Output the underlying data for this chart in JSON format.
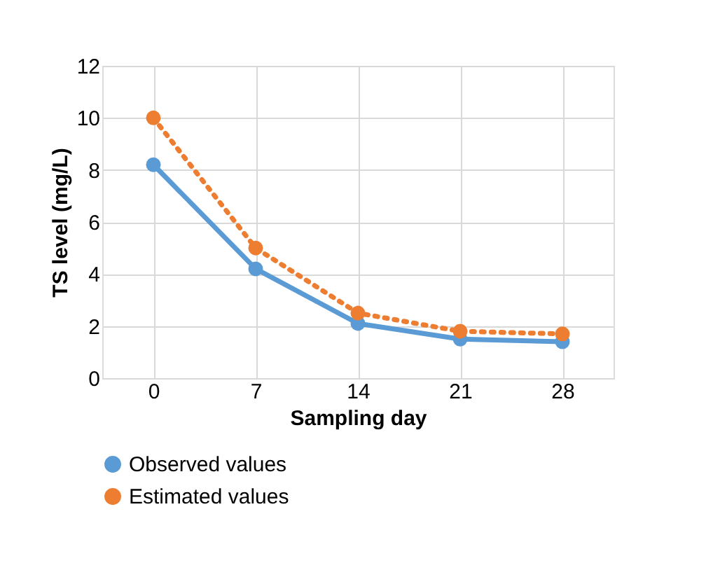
{
  "chart_data": {
    "type": "line",
    "xlabel": "Sampling day",
    "ylabel": "TS level (mg/L)",
    "categories": [
      "0",
      "7",
      "14",
      "21",
      "28"
    ],
    "series": [
      {
        "name": "Observed values",
        "color": "#5b9bd5",
        "values": [
          8.2,
          4.2,
          2.1,
          1.5,
          1.4
        ],
        "line_style": "solid",
        "marker": "circle"
      },
      {
        "name": "Estimated values",
        "color": "#ed7d31",
        "values": [
          10,
          5.0,
          2.5,
          1.8,
          1.7
        ],
        "line_style": "dotted",
        "marker": "circle"
      }
    ],
    "ylim": [
      0,
      12
    ],
    "yticks": [
      0,
      2,
      4,
      6,
      8,
      10,
      12
    ],
    "grid": true,
    "legend": "bottom"
  }
}
